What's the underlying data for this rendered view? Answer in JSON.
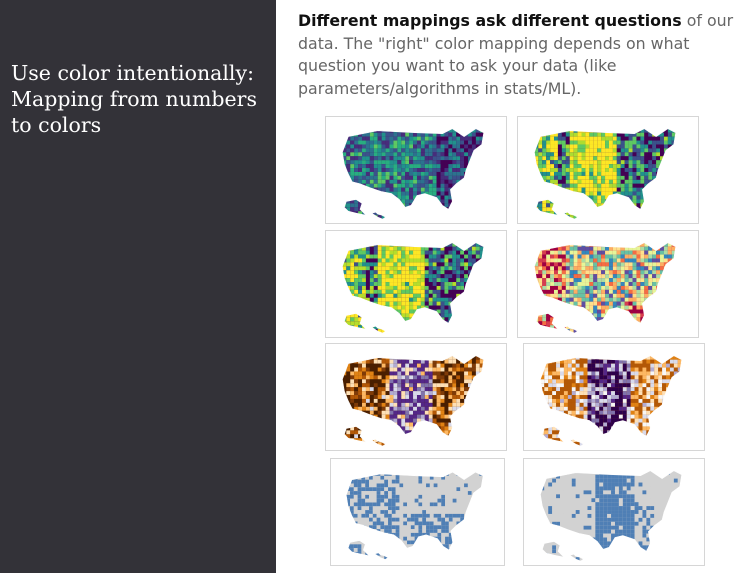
{
  "slide": {
    "title_lines": [
      "Use color intentionally:",
      "Mapping from numbers",
      "to colors"
    ],
    "heading_bold": "Different mappings ask different questions",
    "heading_rest": " of our data. The \"right\" color mapping depends on what question you want to ask your data (like parameters/algorithms in stats/ML)."
  },
  "maps": [
    {
      "name": "viridis-linear",
      "palette": [
        "#440154",
        "#472d7b",
        "#3b528b",
        "#2c728e",
        "#21918c",
        "#28ae80",
        "#5ec962"
      ],
      "gray": "#ffffff"
    },
    {
      "name": "viridis-quantile",
      "palette": [
        "#440154",
        "#3b528b",
        "#21918c",
        "#5ec962",
        "#addc30",
        "#fde725"
      ],
      "gray": "#ffffff"
    },
    {
      "name": "viridis-reversed",
      "palette": [
        "#440154",
        "#3b528b",
        "#21918c",
        "#5ec962",
        "#b5de2b",
        "#fde725"
      ],
      "gray": "#ffffff"
    },
    {
      "name": "spectral",
      "palette": [
        "#9e0142",
        "#d53e4f",
        "#f46d43",
        "#fdae61",
        "#fee08b",
        "#e6f598",
        "#abdda4",
        "#66c2a5",
        "#3288bd",
        "#5e4fa2"
      ],
      "gray": "#ffffff"
    },
    {
      "name": "diverging-brown-purple",
      "palette": [
        "#4a1f00",
        "#7f3b08",
        "#b35806",
        "#e08214",
        "#fdb863",
        "#fee0b6",
        "#d8daeb",
        "#b2abd2",
        "#8073ac",
        "#542788"
      ],
      "gray": "#ffffff"
    },
    {
      "name": "diverging-brown-purple-2",
      "palette": [
        "#b35806",
        "#e08214",
        "#fdb863",
        "#fee0b6",
        "#f7f7f7",
        "#d8daeb",
        "#b2abd2",
        "#8073ac",
        "#542788",
        "#2d004b"
      ],
      "gray": "#ffffff"
    },
    {
      "name": "binary-west",
      "palette": [
        "#4f7fb5"
      ],
      "gray": "#d2d2d2"
    },
    {
      "name": "binary-central",
      "palette": [
        "#4f7fb5"
      ],
      "gray": "#d2d2d2"
    }
  ]
}
